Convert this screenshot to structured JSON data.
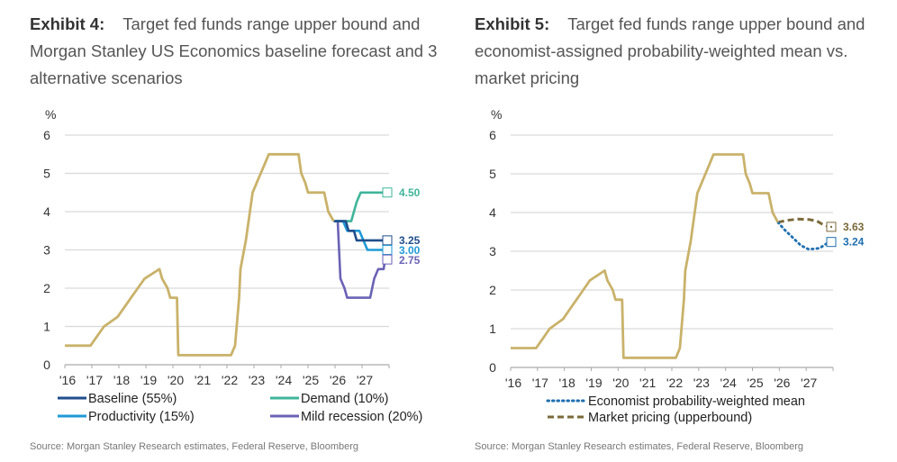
{
  "exhibits": [
    {
      "label": "Exhibit 4:",
      "title": "Target fed funds range upper bound and Morgan Stanley US Economics baseline forecast and 3 alternative scenarios",
      "source": "Source: Morgan Stanley Research estimates, Federal Reserve, Bloomberg"
    },
    {
      "label": "Exhibit 5:",
      "title": "Target fed funds range upper bound and economist-assigned probability-weighted mean vs. market pricing",
      "source": "Source: Morgan Stanley Research estimates, Federal Reserve, Bloomberg"
    }
  ],
  "chart_data": [
    {
      "type": "line",
      "title": "Target fed funds range upper bound and Morgan Stanley US Economics baseline forecast and 3 alternative scenarios",
      "ylabel": "%",
      "ylim": [
        0,
        6
      ],
      "yticks": [
        "0",
        "1",
        "2",
        "3",
        "4",
        "5",
        "6"
      ],
      "xlim": [
        2016,
        2028
      ],
      "xticks": [
        "'16",
        "'17",
        "'18",
        "'19",
        "'20",
        "'21",
        "'22",
        "'23",
        "'24",
        "'25",
        "'26",
        "'27"
      ],
      "grid": true,
      "legend_position": "bottom",
      "history": {
        "name": "Target fed funds upper bound",
        "color": "#c9b26a",
        "points": [
          [
            2016.0,
            0.5
          ],
          [
            2016.95,
            0.5
          ],
          [
            2017.2,
            0.75
          ],
          [
            2017.45,
            1.0
          ],
          [
            2017.95,
            1.25
          ],
          [
            2018.2,
            1.5
          ],
          [
            2018.45,
            1.75
          ],
          [
            2018.7,
            2.0
          ],
          [
            2018.95,
            2.25
          ],
          [
            2019.5,
            2.5
          ],
          [
            2019.6,
            2.25
          ],
          [
            2019.8,
            2.0
          ],
          [
            2019.9,
            1.75
          ],
          [
            2020.15,
            1.75
          ],
          [
            2020.2,
            0.25
          ],
          [
            2022.15,
            0.25
          ],
          [
            2022.3,
            0.5
          ],
          [
            2022.45,
            1.75
          ],
          [
            2022.5,
            2.5
          ],
          [
            2022.7,
            3.25
          ],
          [
            2022.95,
            4.5
          ],
          [
            2023.1,
            4.75
          ],
          [
            2023.25,
            5.0
          ],
          [
            2023.4,
            5.25
          ],
          [
            2023.55,
            5.5
          ],
          [
            2024.65,
            5.5
          ],
          [
            2024.75,
            5.0
          ],
          [
            2024.9,
            4.75
          ],
          [
            2025.0,
            4.5
          ],
          [
            2025.6,
            4.5
          ],
          [
            2025.75,
            4.0
          ],
          [
            2025.95,
            3.75
          ]
        ]
      },
      "series": [
        {
          "name": "Baseline (55%)",
          "color": "#1f4e8c",
          "end_value": 3.25,
          "points": [
            [
              2025.95,
              3.75
            ],
            [
              2026.4,
              3.75
            ],
            [
              2026.5,
              3.5
            ],
            [
              2026.7,
              3.5
            ],
            [
              2026.8,
              3.25
            ],
            [
              2027.85,
              3.25
            ]
          ]
        },
        {
          "name": "Demand (10%)",
          "color": "#3fb59a",
          "end_value": 4.5,
          "points": [
            [
              2025.95,
              3.75
            ],
            [
              2026.6,
              3.75
            ],
            [
              2026.7,
              4.0
            ],
            [
              2026.8,
              4.25
            ],
            [
              2026.95,
              4.5
            ],
            [
              2027.85,
              4.5
            ]
          ]
        },
        {
          "name": "Productivity (15%)",
          "color": "#1e9ad6",
          "end_value": 3.0,
          "points": [
            [
              2025.95,
              3.75
            ],
            [
              2026.3,
              3.75
            ],
            [
              2026.45,
              3.5
            ],
            [
              2026.9,
              3.5
            ],
            [
              2027.05,
              3.25
            ],
            [
              2027.2,
              3.0
            ],
            [
              2027.85,
              3.0
            ]
          ]
        },
        {
          "name": "Mild recession (20%)",
          "color": "#6a62b5",
          "end_value": 2.75,
          "points": [
            [
              2025.95,
              3.75
            ],
            [
              2026.1,
              3.75
            ],
            [
              2026.2,
              2.25
            ],
            [
              2026.35,
              2.0
            ],
            [
              2026.45,
              1.75
            ],
            [
              2027.3,
              1.75
            ],
            [
              2027.45,
              2.25
            ],
            [
              2027.6,
              2.5
            ],
            [
              2027.8,
              2.5
            ],
            [
              2027.85,
              2.75
            ]
          ]
        }
      ],
      "end_labels": [
        "4.50",
        "3.25",
        "3.00",
        "2.75"
      ]
    },
    {
      "type": "line",
      "title": "Target fed funds range upper bound and economist-assigned probability-weighted mean vs. market pricing",
      "ylabel": "%",
      "ylim": [
        0,
        6
      ],
      "yticks": [
        "0",
        "1",
        "2",
        "3",
        "4",
        "5",
        "6"
      ],
      "xlim": [
        2016,
        2028
      ],
      "xticks": [
        "'16",
        "'17",
        "'18",
        "'19",
        "'20",
        "'21",
        "'22",
        "'23",
        "'24",
        "'25",
        "'26",
        "'27"
      ],
      "grid": true,
      "legend_position": "bottom",
      "history": {
        "name": "Target fed funds upper bound",
        "color": "#c9b26a",
        "points": [
          [
            2016.0,
            0.5
          ],
          [
            2016.95,
            0.5
          ],
          [
            2017.2,
            0.75
          ],
          [
            2017.45,
            1.0
          ],
          [
            2017.95,
            1.25
          ],
          [
            2018.2,
            1.5
          ],
          [
            2018.45,
            1.75
          ],
          [
            2018.7,
            2.0
          ],
          [
            2018.95,
            2.25
          ],
          [
            2019.5,
            2.5
          ],
          [
            2019.6,
            2.25
          ],
          [
            2019.8,
            2.0
          ],
          [
            2019.9,
            1.75
          ],
          [
            2020.15,
            1.75
          ],
          [
            2020.2,
            0.25
          ],
          [
            2022.15,
            0.25
          ],
          [
            2022.3,
            0.5
          ],
          [
            2022.45,
            1.75
          ],
          [
            2022.5,
            2.5
          ],
          [
            2022.7,
            3.25
          ],
          [
            2022.95,
            4.5
          ],
          [
            2023.1,
            4.75
          ],
          [
            2023.25,
            5.0
          ],
          [
            2023.4,
            5.25
          ],
          [
            2023.55,
            5.5
          ],
          [
            2024.65,
            5.5
          ],
          [
            2024.75,
            5.0
          ],
          [
            2024.9,
            4.75
          ],
          [
            2025.0,
            4.5
          ],
          [
            2025.6,
            4.5
          ],
          [
            2025.75,
            4.0
          ],
          [
            2025.95,
            3.75
          ]
        ]
      },
      "series": [
        {
          "name": "Economist probability-weighted mean",
          "color": "#1e6fb0",
          "style": "dotted",
          "end_value": 3.24,
          "points": [
            [
              2025.95,
              3.75
            ],
            [
              2026.2,
              3.55
            ],
            [
              2026.5,
              3.35
            ],
            [
              2026.8,
              3.15
            ],
            [
              2027.1,
              3.05
            ],
            [
              2027.5,
              3.08
            ],
            [
              2027.85,
              3.24
            ]
          ]
        },
        {
          "name": "Market pricing (upperbound)",
          "color": "#7a6a3a",
          "style": "dashed",
          "end_value": 3.63,
          "points": [
            [
              2025.95,
              3.75
            ],
            [
              2026.3,
              3.8
            ],
            [
              2026.7,
              3.83
            ],
            [
              2027.1,
              3.82
            ],
            [
              2027.4,
              3.78
            ],
            [
              2027.6,
              3.7
            ],
            [
              2027.85,
              3.63
            ]
          ]
        }
      ],
      "end_labels": [
        "3.63",
        "3.24"
      ]
    }
  ]
}
